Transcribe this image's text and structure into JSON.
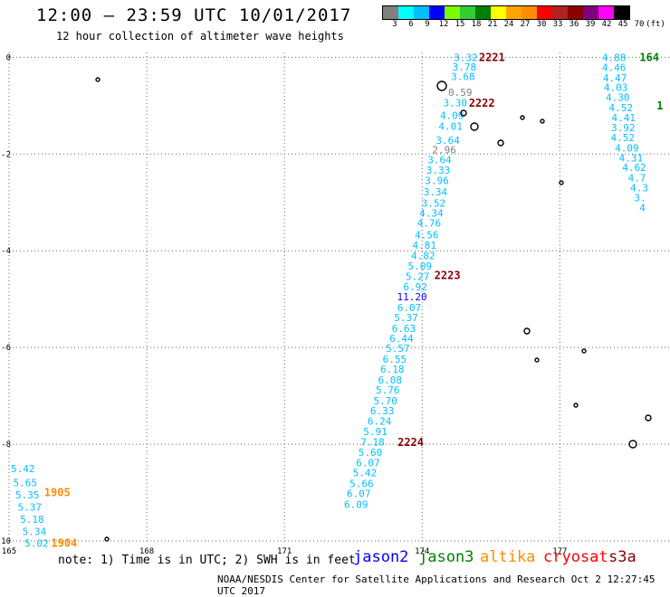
{
  "header": {
    "title": "12:00 — 23:59 UTC 10/01/2017",
    "subtitle": "12 hour collection of altimeter wave heights"
  },
  "color_legend": {
    "labels": [
      "3",
      "6",
      "9",
      "12",
      "15",
      "18",
      "21",
      "24",
      "27",
      "30",
      "33",
      "36",
      "39",
      "42",
      "45",
      "70",
      "(ft)"
    ],
    "colors": [
      "#808080",
      "#00ffff",
      "#00bfff",
      "#0000ff",
      "#7cfc00",
      "#32cd32",
      "#008000",
      "#ffff00",
      "#ffa500",
      "#ff8c00",
      "#ff0000",
      "#b22222",
      "#8b0000",
      "#800080",
      "#ff00ff",
      "#000000"
    ]
  },
  "chart_data": {
    "type": "scatter",
    "x_axis": {
      "range": [
        165,
        179.4
      ],
      "ticks": [
        165,
        168,
        171,
        174,
        177
      ]
    },
    "y_axis": {
      "range": [
        -10,
        0.1
      ],
      "ticks": [
        0,
        -2,
        -4,
        -6,
        -8,
        -10
      ]
    },
    "grid": true,
    "series": [
      {
        "name": "pass-2221-2224",
        "color": "#00bfff",
        "points": [
          {
            "x": 174.95,
            "y": 0.0,
            "v": "3.32"
          },
          {
            "x": 174.92,
            "y": -0.2,
            "v": "3.78"
          },
          {
            "x": 174.89,
            "y": -0.4,
            "v": "3.68"
          },
          {
            "x": 174.83,
            "y": -0.72,
            "v": "0.59",
            "color": "#808080"
          },
          {
            "x": 174.72,
            "y": -0.94,
            "v": "3.30"
          },
          {
            "x": 174.65,
            "y": -1.2,
            "v": "4.09"
          },
          {
            "x": 174.62,
            "y": -1.42,
            "v": "4.01"
          },
          {
            "x": 174.56,
            "y": -1.71,
            "v": "3.64"
          },
          {
            "x": 174.48,
            "y": -1.91,
            "v": "2.96",
            "color": "#808080"
          },
          {
            "x": 174.38,
            "y": -2.12,
            "v": "3.64"
          },
          {
            "x": 174.35,
            "y": -2.33,
            "v": "3.33"
          },
          {
            "x": 174.32,
            "y": -2.55,
            "v": "3.96"
          },
          {
            "x": 174.29,
            "y": -2.78,
            "v": "3.34"
          },
          {
            "x": 174.25,
            "y": -3.01,
            "v": "3.52"
          },
          {
            "x": 174.2,
            "y": -3.22,
            "v": "4.34"
          },
          {
            "x": 174.15,
            "y": -3.43,
            "v": "4.76"
          },
          {
            "x": 174.1,
            "y": -3.67,
            "v": "4.56"
          },
          {
            "x": 174.05,
            "y": -3.88,
            "v": "4.81"
          },
          {
            "x": 174.02,
            "y": -4.1,
            "v": "4.82"
          },
          {
            "x": 173.95,
            "y": -4.31,
            "v": "5.09"
          },
          {
            "x": 173.9,
            "y": -4.53,
            "v": "5.27"
          },
          {
            "x": 173.85,
            "y": -4.74,
            "v": "6.92"
          },
          {
            "x": 173.78,
            "y": -4.95,
            "v": "11.20",
            "color": "#0000ff"
          },
          {
            "x": 173.72,
            "y": -5.17,
            "v": "6.07"
          },
          {
            "x": 173.65,
            "y": -5.38,
            "v": "5.37"
          },
          {
            "x": 173.6,
            "y": -5.6,
            "v": "6.63"
          },
          {
            "x": 173.55,
            "y": -5.81,
            "v": "6.44"
          },
          {
            "x": 173.47,
            "y": -6.02,
            "v": "5.57"
          },
          {
            "x": 173.4,
            "y": -6.24,
            "v": "6.55"
          },
          {
            "x": 173.35,
            "y": -6.45,
            "v": "6.18"
          },
          {
            "x": 173.3,
            "y": -6.67,
            "v": "6.08"
          },
          {
            "x": 173.25,
            "y": -6.88,
            "v": "5.76"
          },
          {
            "x": 173.2,
            "y": -7.1,
            "v": "5.70"
          },
          {
            "x": 173.13,
            "y": -7.31,
            "v": "6.33"
          },
          {
            "x": 173.07,
            "y": -7.52,
            "v": "6.24"
          },
          {
            "x": 172.98,
            "y": -7.74,
            "v": "5.91"
          },
          {
            "x": 172.92,
            "y": -7.95,
            "v": "7.18"
          },
          {
            "x": 172.87,
            "y": -8.17,
            "v": "5.60"
          },
          {
            "x": 172.82,
            "y": -8.38,
            "v": "6.07"
          },
          {
            "x": 172.75,
            "y": -8.59,
            "v": "5.42"
          },
          {
            "x": 172.68,
            "y": -8.81,
            "v": "5.66"
          },
          {
            "x": 172.62,
            "y": -9.02,
            "v": "6.07"
          },
          {
            "x": 172.56,
            "y": -9.24,
            "v": "6.09"
          }
        ]
      },
      {
        "name": "pass-right",
        "color": "#00bfff",
        "points": [
          {
            "x": 178.18,
            "y": 0.0,
            "v": "4.88"
          },
          {
            "x": 178.18,
            "y": -0.21,
            "v": "4.46"
          },
          {
            "x": 178.2,
            "y": -0.42,
            "v": "4.47"
          },
          {
            "x": 178.22,
            "y": -0.62,
            "v": "4.03"
          },
          {
            "x": 178.26,
            "y": -0.83,
            "v": "4.30"
          },
          {
            "x": 178.33,
            "y": -1.04,
            "v": "4.52"
          },
          {
            "x": 178.39,
            "y": -1.25,
            "v": "4.41"
          },
          {
            "x": 178.38,
            "y": -1.45,
            "v": "3.92"
          },
          {
            "x": 178.37,
            "y": -1.66,
            "v": "4.52"
          },
          {
            "x": 178.46,
            "y": -1.87,
            "v": "4.09"
          },
          {
            "x": 178.55,
            "y": -2.08,
            "v": "4.31"
          },
          {
            "x": 178.62,
            "y": -2.28,
            "v": "4.62"
          },
          {
            "x": 178.68,
            "y": -2.49,
            "v": "4.7"
          },
          {
            "x": 178.73,
            "y": -2.7,
            "v": "4.3"
          },
          {
            "x": 178.75,
            "y": -2.9,
            "v": "3."
          },
          {
            "x": 178.8,
            "y": -3.11,
            "v": "4"
          }
        ]
      },
      {
        "name": "pass-left",
        "color": "#00bfff",
        "points": [
          {
            "x": 165.3,
            "y": -8.5,
            "v": "5.42"
          },
          {
            "x": 165.35,
            "y": -8.79,
            "v": "5.65"
          },
          {
            "x": 165.4,
            "y": -9.05,
            "v": "5.35"
          },
          {
            "x": 165.45,
            "y": -9.3,
            "v": "5.37"
          },
          {
            "x": 165.5,
            "y": -9.55,
            "v": "5.18"
          },
          {
            "x": 165.55,
            "y": -9.8,
            "v": "5.34"
          },
          {
            "x": 165.6,
            "y": -10.05,
            "v": "5.02"
          }
        ]
      }
    ],
    "pass_labels": [
      {
        "x": 175.52,
        "y": 0.0,
        "text": "2221",
        "color": "#8b0000"
      },
      {
        "x": 175.3,
        "y": -0.95,
        "text": "2222",
        "color": "#8b0000"
      },
      {
        "x": 174.55,
        "y": -4.51,
        "text": "2223",
        "color": "#8b0000"
      },
      {
        "x": 173.75,
        "y": -7.96,
        "text": "2224",
        "color": "#8b0000"
      },
      {
        "x": 166.05,
        "y": -9.0,
        "text": "1905",
        "color": "#ff8c00"
      },
      {
        "x": 166.2,
        "y": -10.05,
        "text": "1904",
        "color": "#ff8c00"
      },
      {
        "x": 178.95,
        "y": 0.0,
        "text": "164",
        "color": "#008000"
      },
      {
        "x": 179.18,
        "y": -1.0,
        "text": "1",
        "color": "#008000"
      }
    ]
  },
  "note": "note: 1) Time is in UTC; 2) SWH is in feet",
  "satellites": [
    {
      "name": "jason2",
      "color": "#0000ff"
    },
    {
      "name": "jason3",
      "color": "#008000"
    },
    {
      "name": "altika",
      "color": "#ff8c00"
    },
    {
      "name": "cryosat",
      "color": "#ff0000"
    },
    {
      "name": "s3a",
      "color": "#8b0000"
    }
  ],
  "footer": "NOAA/NESDIS Center for Satellite Applications and Research   Oct  2 12:27:45 UTC 2017"
}
